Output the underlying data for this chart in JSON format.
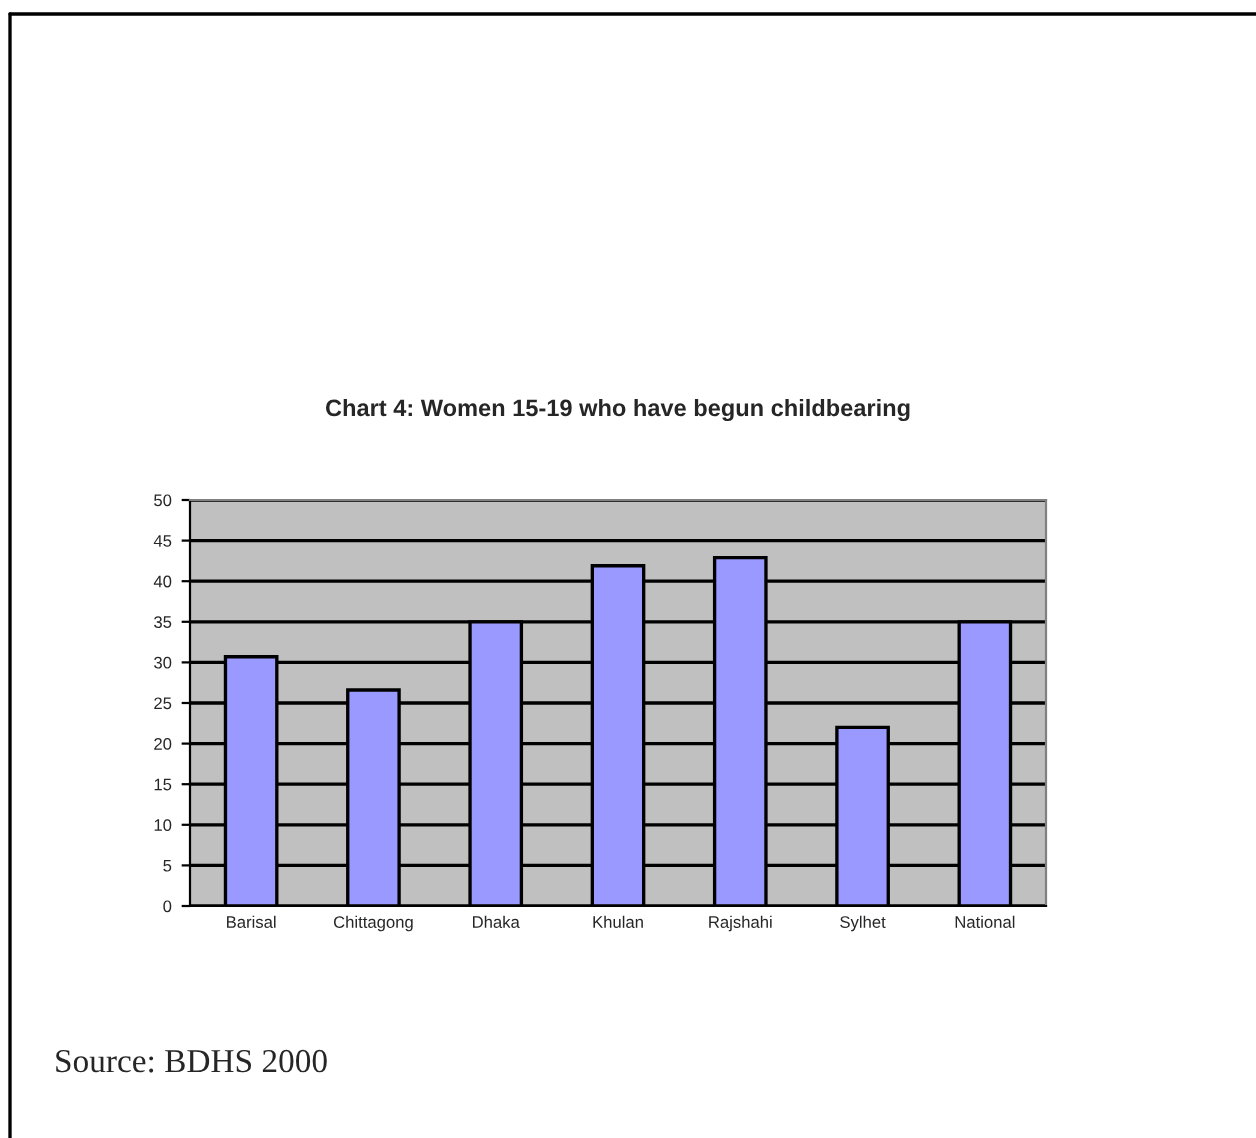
{
  "chart_data": {
    "type": "bar",
    "title": "Chart 4: Women 15-19 who have begun childbearing",
    "categories": [
      "Barisal",
      "Chittagong",
      "Dhaka",
      "Khulan",
      "Rajshahi",
      "Sylhet",
      "National"
    ],
    "values": [
      30.7,
      26.6,
      35,
      41.9,
      42.9,
      22,
      35
    ],
    "color": "#9999ff",
    "ylim": [
      0,
      50
    ],
    "yticks": [
      0,
      5,
      10,
      15,
      20,
      25,
      30,
      35,
      40,
      45,
      50
    ],
    "grid": "y",
    "annotations": [
      "Source: BDHS 2000"
    ]
  }
}
